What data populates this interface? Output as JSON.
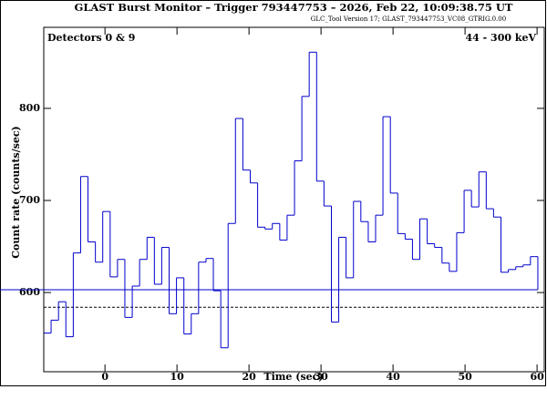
{
  "chart_data": {
    "type": "step",
    "title": "GLAST Burst Monitor  –  Trigger 793447753  –  2026, Feb 22, 10:09:38.75 UT",
    "subtitle": "GLC_Tool Version 17; GLAST_793447753_VC08_GTRIG.0.00",
    "annotations": [
      "Detectors 0 & 9",
      "44 - 300 keV"
    ],
    "xlabel": "Time (sec)",
    "ylabel": "Count rate (counts/sec)",
    "bins": [
      -8.5,
      -7.48,
      -6.45,
      -5.43,
      -4.4,
      -3.38,
      -2.36,
      -1.33,
      -0.31,
      0.72,
      1.74,
      2.76,
      3.79,
      4.81,
      5.84,
      6.86,
      7.88,
      8.91,
      9.93,
      10.96,
      11.98,
      13.0,
      14.03,
      15.05,
      16.08,
      17.1,
      18.12,
      19.15,
      20.17,
      21.2,
      22.22,
      23.24,
      24.27,
      25.29,
      26.32,
      27.34,
      28.36,
      29.39,
      30.41,
      31.44,
      32.46,
      33.48,
      34.51,
      35.53,
      36.56,
      37.58,
      38.6,
      39.63,
      40.65,
      41.68,
      42.7,
      43.72,
      44.75,
      45.77,
      46.8,
      47.82,
      48.84,
      49.87,
      50.89,
      51.92,
      52.94,
      53.96,
      54.99,
      56.01,
      57.04,
      58.06,
      59.08,
      60.11
    ],
    "values": [
      556,
      570,
      590,
      552,
      643,
      726,
      655,
      633,
      688,
      617,
      636,
      573,
      607,
      636,
      660,
      609,
      649,
      577,
      616,
      555,
      577,
      633,
      637,
      602,
      540,
      675,
      789,
      733,
      719,
      671,
      669,
      675,
      657,
      684,
      743,
      813,
      861,
      721,
      694,
      568,
      660,
      616,
      699,
      677,
      655,
      684,
      791,
      708,
      664,
      658,
      636,
      680,
      653,
      649,
      632,
      623,
      665,
      711,
      693,
      731,
      691,
      682,
      622,
      625,
      628,
      630,
      639,
      603
    ],
    "color": "#0000cc",
    "background": 584,
    "xlim": [
      -8.5,
      61.0
    ],
    "ylim": [
      514,
      888
    ],
    "xticks": [
      0,
      10,
      20,
      30,
      40,
      50,
      60
    ],
    "yticks": [
      600,
      700,
      800
    ]
  }
}
